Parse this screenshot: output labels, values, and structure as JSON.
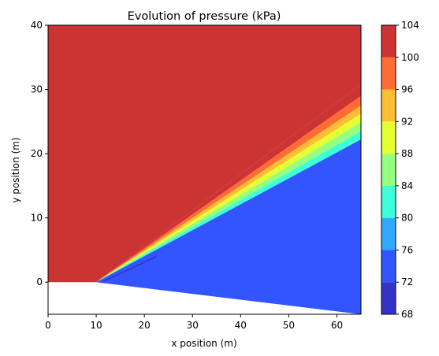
{
  "chart_data": {
    "type": "contour",
    "title": "Evolution of pressure (kPa)",
    "xlabel": "x position (m)",
    "ylabel": "y position (m)",
    "xlim": [
      0,
      65
    ],
    "ylim": [
      -5,
      40
    ],
    "xticks": [
      0,
      10,
      20,
      30,
      40,
      50,
      60
    ],
    "yticks": [
      0,
      10,
      20,
      30,
      40
    ],
    "colorbar": {
      "levels": [
        68,
        72,
        76,
        80,
        84,
        88,
        92,
        96,
        100,
        104
      ],
      "tick_labels": [
        "68",
        "72",
        "76",
        "80",
        "84",
        "88",
        "92",
        "96",
        "100",
        "104"
      ],
      "colors": [
        "#3333c8",
        "#3355ff",
        "#33a8ff",
        "#3dffd8",
        "#96ff80",
        "#e6ff33",
        "#ffbe33",
        "#ff6b33",
        "#cc3333"
      ],
      "colormap": "jet"
    },
    "geometry": {
      "wall": {
        "x": [
          0,
          10,
          65
        ],
        "y": [
          0,
          0,
          -5
        ]
      },
      "shock_fan_origin": {
        "x": 10,
        "y": 0
      },
      "fan_edges": [
        {
          "x_end": 65,
          "y_end": 30.8,
          "pressure": 100
        },
        {
          "x_end": 65,
          "y_end": 29.0,
          "pressure": 96
        },
        {
          "x_end": 65,
          "y_end": 27.5,
          "pressure": 92
        },
        {
          "x_end": 65,
          "y_end": 26.2,
          "pressure": 88
        },
        {
          "x_end": 65,
          "y_end": 24.9,
          "pressure": 84
        },
        {
          "x_end": 65,
          "y_end": 23.5,
          "pressure": 80
        },
        {
          "x_end": 65,
          "y_end": 22.2,
          "pressure": 76
        }
      ],
      "upstream_pressure": 102,
      "downstream_pressure": 74,
      "streak": {
        "x": [
          11.5,
          22.5
        ],
        "y": [
          0.1,
          4.0
        ],
        "pressure": 70
      }
    }
  }
}
